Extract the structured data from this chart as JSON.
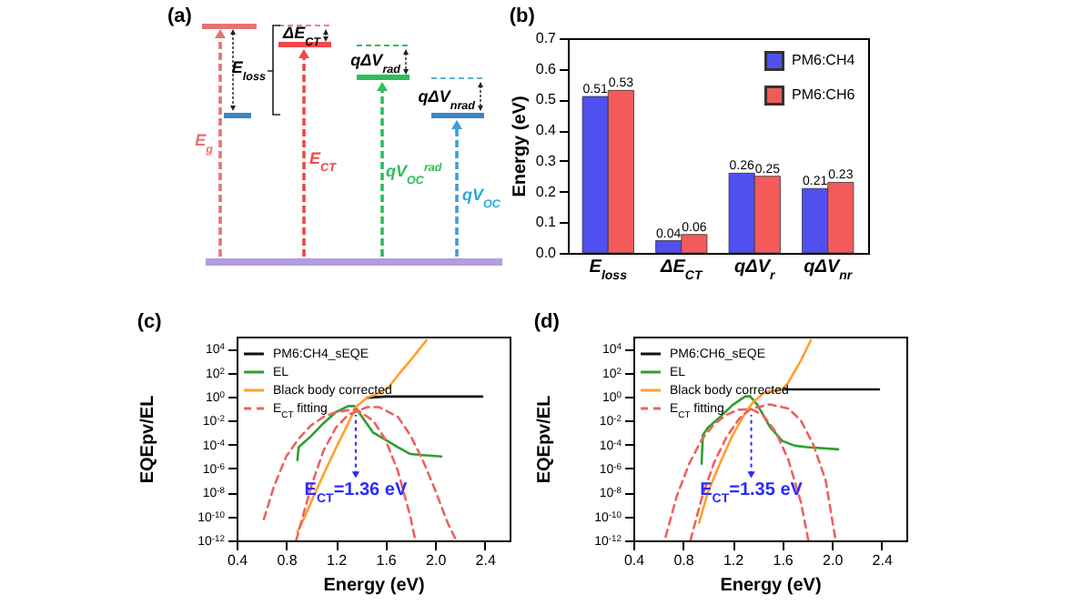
{
  "chart_data": [
    {
      "type": "other",
      "title": "(a)",
      "annotations": [
        "E$_{loss}$",
        "ΔE$_{CT}$",
        "qΔV$_{rad}$",
        "qΔV$_{nrad}$",
        "E$_{g}$",
        "E$_{CT}$",
        "qV$_{OC}$$^{rad}$",
        "qV$_{OC}$"
      ]
    },
    {
      "type": "bar",
      "title": "(b)",
      "categories": [
        "E$_{loss}$",
        "ΔE$_{CT}$",
        "qΔV$_{r}$",
        "qΔV$_{nr}$"
      ],
      "ylabel": "Energy (eV)",
      "ylim": [
        0,
        0.7
      ],
      "yticks": [
        {
          "value": 0,
          "label": "0.0"
        },
        0.1,
        0.2,
        0.3,
        0.4,
        0.5,
        0.6,
        0.7
      ],
      "data_labels": true,
      "legend": "top right",
      "series": [
        {
          "name": "PM6:CH4",
          "color": "#5050f0",
          "values": [
            0.51,
            0.04,
            0.26,
            0.21
          ]
        },
        {
          "name": "PM6:CH6",
          "color": "#f55a5a",
          "values": [
            0.53,
            0.06,
            0.25,
            0.23
          ]
        }
      ]
    },
    {
      "type": "line",
      "title": "(c)",
      "xlabel": "Energy (eV)",
      "ylabel": "EQEpv/EL",
      "log": "y",
      "legend": "top left",
      "xlim": [
        0.4,
        2.6
      ],
      "xticks": [
        0.4,
        0.8,
        1.2,
        1.6,
        {
          "value": 2,
          "label": "2.0"
        },
        2.4
      ],
      "ylim": [
        1e-12,
        100000.0
      ],
      "yticks": [
        {
          "value": 10000.0,
          "label": "10$^{4}$"
        },
        {
          "value": 100.0,
          "label": "10$^{2}$"
        },
        {
          "value": 1,
          "label": "10$^{0}$"
        },
        {
          "value": 0.01,
          "label": "10$^{-2}$"
        },
        {
          "value": 0.0001,
          "label": "10$^{-4}$"
        },
        {
          "value": 1e-06,
          "label": "10$^{-6}$"
        },
        {
          "value": 1e-08,
          "label": "10$^{-8}$"
        },
        {
          "value": 1e-10,
          "label": "10$^{-10}$"
        },
        {
          "value": 1e-12,
          "label": "10$^{-12}$"
        }
      ],
      "annotations": [
        {
          "text": "E$_{CT}$=1.36 eV",
          "x": 1.36,
          "y": 3e-07
        }
      ],
      "series": [
        {
          "name": "PM6:CH4_sEQE",
          "type": "line",
          "line_style": "solid",
          "color": "#111111",
          "x": [
            1.45,
            1.6,
            2.38
          ],
          "values": [
            0.8,
            1,
            1
          ]
        },
        {
          "name": "EL",
          "type": "line",
          "line_style": "solid",
          "color": "#2e9e2e",
          "x": [
            0.89,
            0.9,
            1.0,
            1.1,
            1.2,
            1.3,
            1.35,
            1.4,
            1.5,
            1.6,
            1.7,
            1.8,
            1.9,
            2.05
          ],
          "values": [
            5e-06,
            6e-05,
            0.0005,
            0.006,
            0.05,
            0.16,
            0.16,
            0.03,
            0.001,
            0.00025,
            6e-05,
            1.6e-05,
            1.3e-05,
            1e-05
          ]
        },
        {
          "name": "Black body corrected",
          "type": "line",
          "line_style": "solid",
          "color": "#ff9f2e",
          "x": [
            0.89,
            0.95,
            1.0,
            1.1,
            1.2,
            1.3,
            1.36,
            1.45,
            1.55,
            1.62,
            1.7,
            1.8,
            1.93
          ],
          "values": [
            5e-12,
            1e-10,
            1.6e-09,
            3e-07,
            5e-05,
            0.006,
            0.13,
            0.8,
            2,
            5,
            60,
            1000,
            50000
          ]
        },
        {
          "name": "E$_{CT}$ fitting",
          "type": "line",
          "line_style": "dashed",
          "color": "#f06060",
          "x": [
            0.62,
            0.7,
            0.8,
            0.9,
            1.0,
            1.1,
            1.2,
            1.36,
            1.5,
            1.6,
            1.7,
            1.8,
            1.84
          ],
          "values": [
            6e-11,
            3e-08,
            1e-05,
            0.0003,
            0.004,
            0.02,
            0.05,
            0.09,
            0.01,
            0.00025,
            6e-07,
            1e-10,
            1e-12
          ]
        },
        {
          "type": "line",
          "line_style": "dashed",
          "color": "#f06060",
          "x": [
            0.88,
            1.0,
            1.1,
            1.2,
            1.3,
            1.45,
            1.55,
            1.7,
            1.8,
            1.9,
            2.0,
            2.1,
            2.17
          ],
          "values": [
            1e-12,
            3e-08,
            3e-05,
            0.0025,
            0.03,
            0.13,
            0.13,
            0.02,
            0.0006,
            5e-06,
            1.6e-08,
            3e-11,
            1e-12
          ]
        }
      ]
    },
    {
      "type": "line",
      "title": "(d)",
      "xlabel": "Energy (eV)",
      "ylabel": "EQEpv/EL",
      "log": "y",
      "legend": "top left",
      "xlim": [
        0.4,
        2.6
      ],
      "xticks": [
        0.4,
        0.8,
        1.2,
        1.6,
        {
          "value": 2,
          "label": "2.0"
        },
        2.4
      ],
      "ylim": [
        1e-12,
        100000.0
      ],
      "yticks": [
        {
          "value": 10000.0,
          "label": "10$^{4}$"
        },
        {
          "value": 100.0,
          "label": "10$^{2}$"
        },
        {
          "value": 1,
          "label": "10$^{0}$"
        },
        {
          "value": 0.01,
          "label": "10$^{-2}$"
        },
        {
          "value": 0.0001,
          "label": "10$^{-4}$"
        },
        {
          "value": 1e-06,
          "label": "10$^{-6}$"
        },
        {
          "value": 1e-08,
          "label": "10$^{-8}$"
        },
        {
          "value": 1e-10,
          "label": "10$^{-10}$"
        },
        {
          "value": 1e-12,
          "label": "10$^{-12}$"
        }
      ],
      "annotations": [
        {
          "text": "E$_{CT}$=1.35 eV",
          "x": 1.35,
          "y": 3e-07
        }
      ],
      "series": [
        {
          "name": "PM6:CH6_sEQE",
          "type": "line",
          "line_style": "solid",
          "color": "#111111",
          "x": [
            1.45,
            1.6,
            2.38
          ],
          "values": [
            2,
            4,
            4
          ]
        },
        {
          "name": "EL",
          "type": "line",
          "line_style": "solid",
          "color": "#2e9e2e",
          "x": [
            0.95,
            0.96,
            1.0,
            1.1,
            1.2,
            1.3,
            1.34,
            1.4,
            1.5,
            1.6,
            1.7,
            1.8,
            2.05
          ],
          "values": [
            2.5e-06,
            0.0006,
            0.0025,
            0.02,
            0.2,
            1,
            1.1,
            0.2,
            0.003,
            0.0002,
            8e-05,
            6e-05,
            4e-05
          ]
        },
        {
          "name": "Black body corrected",
          "type": "line",
          "line_style": "solid",
          "color": "#ff9f2e",
          "x": [
            0.93,
            1.0,
            1.1,
            1.2,
            1.3,
            1.36,
            1.45,
            1.6,
            1.65,
            1.75,
            1.83
          ],
          "values": [
            3e-11,
            1e-08,
            3e-06,
            0.0006,
            0.04,
            0.3,
            2,
            4,
            16,
            1000,
            50000
          ]
        },
        {
          "name": "E$_{CT}$ fitting",
          "type": "line",
          "line_style": "dashed",
          "color": "#f06060",
          "x": [
            0.66,
            0.75,
            0.85,
            0.95,
            1.05,
            1.15,
            1.25,
            1.35,
            1.45,
            1.55,
            1.65,
            1.75,
            1.81
          ],
          "values": [
            2e-12,
            5e-09,
            2.5e-06,
            0.00025,
            0.005,
            0.03,
            0.08,
            0.09,
            0.025,
            0.001,
            5e-06,
            1.6e-09,
            1e-12
          ]
        },
        {
          "type": "line",
          "line_style": "dashed",
          "color": "#f06060",
          "x": [
            0.86,
            0.95,
            1.05,
            1.15,
            1.25,
            1.35,
            1.5,
            1.65,
            1.75,
            1.85,
            1.95,
            2.03
          ],
          "values": [
            1e-12,
            3e-09,
            3e-06,
            0.0004,
            0.013,
            0.1,
            0.22,
            0.1,
            0.01,
            0.0001,
            1e-07,
            1e-12
          ]
        }
      ]
    }
  ]
}
